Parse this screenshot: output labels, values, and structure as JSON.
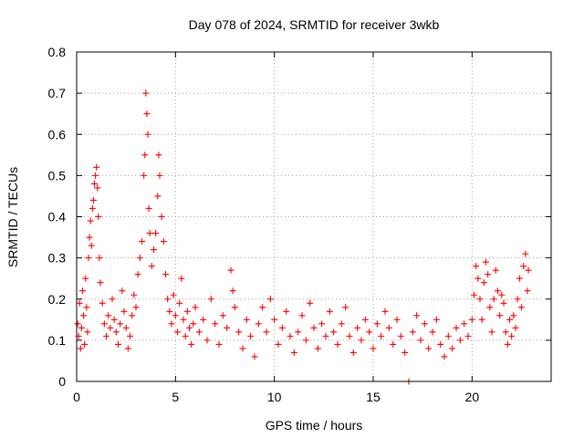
{
  "chart_data": {
    "type": "scatter",
    "title": "Day 078 of 2024, SRMTID for receiver 3wkb",
    "xlabel": "GPS time / hours",
    "ylabel": "SRMTID / TECUs",
    "xlim": [
      0,
      24
    ],
    "ylim": [
      0,
      0.8
    ],
    "x_ticks": [
      0,
      5,
      10,
      15,
      20
    ],
    "x_tick_labels": [
      "0",
      "5",
      "10",
      "15",
      "20"
    ],
    "y_ticks": [
      0,
      0.1,
      0.2,
      0.3,
      0.4,
      0.5,
      0.6,
      0.7,
      0.8
    ],
    "y_tick_labels": [
      "0",
      "0.1",
      "0.2",
      "0.3",
      "0.4",
      "0.5",
      "0.6",
      "0.7",
      "0.8"
    ],
    "grid": true,
    "marker": "plus",
    "color": "#ff0000",
    "series": [
      {
        "name": "SRMTID",
        "points": [
          [
            0.05,
            0.14
          ],
          [
            0.1,
            0.11
          ],
          [
            0.15,
            0.19
          ],
          [
            0.2,
            0.08
          ],
          [
            0.25,
            0.13
          ],
          [
            0.3,
            0.22
          ],
          [
            0.35,
            0.16
          ],
          [
            0.4,
            0.09
          ],
          [
            0.45,
            0.25
          ],
          [
            0.5,
            0.18
          ],
          [
            0.55,
            0.12
          ],
          [
            0.6,
            0.3
          ],
          [
            0.65,
            0.35
          ],
          [
            0.7,
            0.39
          ],
          [
            0.75,
            0.33
          ],
          [
            0.8,
            0.42
          ],
          [
            0.85,
            0.44
          ],
          [
            0.9,
            0.48
          ],
          [
            0.95,
            0.5
          ],
          [
            1.0,
            0.52
          ],
          [
            1.05,
            0.47
          ],
          [
            1.1,
            0.4
          ],
          [
            1.15,
            0.3
          ],
          [
            1.2,
            0.24
          ],
          [
            1.3,
            0.19
          ],
          [
            1.4,
            0.14
          ],
          [
            1.5,
            0.11
          ],
          [
            1.6,
            0.16
          ],
          [
            1.7,
            0.13
          ],
          [
            1.8,
            0.2
          ],
          [
            1.9,
            0.15
          ],
          [
            2.0,
            0.12
          ],
          [
            2.1,
            0.09
          ],
          [
            2.2,
            0.14
          ],
          [
            2.3,
            0.22
          ],
          [
            2.4,
            0.17
          ],
          [
            2.5,
            0.13
          ],
          [
            2.6,
            0.08
          ],
          [
            2.7,
            0.11
          ],
          [
            2.8,
            0.16
          ],
          [
            2.9,
            0.21
          ],
          [
            3.0,
            0.18
          ],
          [
            3.1,
            0.26
          ],
          [
            3.2,
            0.3
          ],
          [
            3.3,
            0.34
          ],
          [
            3.4,
            0.5
          ],
          [
            3.45,
            0.55
          ],
          [
            3.5,
            0.7
          ],
          [
            3.55,
            0.65
          ],
          [
            3.6,
            0.6
          ],
          [
            3.65,
            0.42
          ],
          [
            3.7,
            0.36
          ],
          [
            3.8,
            0.28
          ],
          [
            3.9,
            0.32
          ],
          [
            4.0,
            0.36
          ],
          [
            4.1,
            0.45
          ],
          [
            4.15,
            0.55
          ],
          [
            4.2,
            0.5
          ],
          [
            4.3,
            0.4
          ],
          [
            4.4,
            0.34
          ],
          [
            4.5,
            0.26
          ],
          [
            4.6,
            0.2
          ],
          [
            4.7,
            0.17
          ],
          [
            4.8,
            0.14
          ],
          [
            4.9,
            0.21
          ],
          [
            5.0,
            0.16
          ],
          [
            5.1,
            0.12
          ],
          [
            5.2,
            0.19
          ],
          [
            5.3,
            0.25
          ],
          [
            5.4,
            0.15
          ],
          [
            5.5,
            0.11
          ],
          [
            5.6,
            0.17
          ],
          [
            5.7,
            0.13
          ],
          [
            5.8,
            0.09
          ],
          [
            5.9,
            0.14
          ],
          [
            6.0,
            0.18
          ],
          [
            6.2,
            0.12
          ],
          [
            6.4,
            0.15
          ],
          [
            6.6,
            0.1
          ],
          [
            6.8,
            0.2
          ],
          [
            7.0,
            0.14
          ],
          [
            7.2,
            0.09
          ],
          [
            7.4,
            0.16
          ],
          [
            7.6,
            0.13
          ],
          [
            7.8,
            0.27
          ],
          [
            7.9,
            0.22
          ],
          [
            8.0,
            0.18
          ],
          [
            8.2,
            0.12
          ],
          [
            8.4,
            0.08
          ],
          [
            8.6,
            0.15
          ],
          [
            8.8,
            0.11
          ],
          [
            9.0,
            0.06
          ],
          [
            9.2,
            0.14
          ],
          [
            9.4,
            0.18
          ],
          [
            9.6,
            0.12
          ],
          [
            9.8,
            0.2
          ],
          [
            10.0,
            0.15
          ],
          [
            10.2,
            0.09
          ],
          [
            10.4,
            0.13
          ],
          [
            10.6,
            0.17
          ],
          [
            10.8,
            0.11
          ],
          [
            11.0,
            0.07
          ],
          [
            11.2,
            0.12
          ],
          [
            11.4,
            0.16
          ],
          [
            11.6,
            0.1
          ],
          [
            11.8,
            0.19
          ],
          [
            12.0,
            0.13
          ],
          [
            12.2,
            0.08
          ],
          [
            12.4,
            0.14
          ],
          [
            12.6,
            0.11
          ],
          [
            12.8,
            0.17
          ],
          [
            13.0,
            0.12
          ],
          [
            13.2,
            0.09
          ],
          [
            13.4,
            0.14
          ],
          [
            13.6,
            0.18
          ],
          [
            13.8,
            0.11
          ],
          [
            14.0,
            0.07
          ],
          [
            14.2,
            0.13
          ],
          [
            14.4,
            0.1
          ],
          [
            14.6,
            0.15
          ],
          [
            14.8,
            0.12
          ],
          [
            15.0,
            0.08
          ],
          [
            15.2,
            0.14
          ],
          [
            15.4,
            0.11
          ],
          [
            15.6,
            0.17
          ],
          [
            15.8,
            0.13
          ],
          [
            16.0,
            0.09
          ],
          [
            16.2,
            0.15
          ],
          [
            16.4,
            0.11
          ],
          [
            16.6,
            0.07
          ],
          [
            16.8,
            0.0
          ],
          [
            17.0,
            0.12
          ],
          [
            17.2,
            0.16
          ],
          [
            17.4,
            0.1
          ],
          [
            17.6,
            0.14
          ],
          [
            17.8,
            0.08
          ],
          [
            18.0,
            0.12
          ],
          [
            18.2,
            0.15
          ],
          [
            18.4,
            0.09
          ],
          [
            18.6,
            0.06
          ],
          [
            18.8,
            0.11
          ],
          [
            19.0,
            0.08
          ],
          [
            19.2,
            0.13
          ],
          [
            19.4,
            0.1
          ],
          [
            19.6,
            0.14
          ],
          [
            19.8,
            0.11
          ],
          [
            20.0,
            0.15
          ],
          [
            20.1,
            0.21
          ],
          [
            20.2,
            0.28
          ],
          [
            20.3,
            0.25
          ],
          [
            20.4,
            0.2
          ],
          [
            20.5,
            0.15
          ],
          [
            20.6,
            0.24
          ],
          [
            20.7,
            0.29
          ],
          [
            20.8,
            0.26
          ],
          [
            20.9,
            0.18
          ],
          [
            21.0,
            0.12
          ],
          [
            21.1,
            0.2
          ],
          [
            21.2,
            0.27
          ],
          [
            21.3,
            0.22
          ],
          [
            21.4,
            0.16
          ],
          [
            21.5,
            0.21
          ],
          [
            21.6,
            0.19
          ],
          [
            21.7,
            0.12
          ],
          [
            21.8,
            0.09
          ],
          [
            21.9,
            0.15
          ],
          [
            22.0,
            0.11
          ],
          [
            22.1,
            0.16
          ],
          [
            22.2,
            0.13
          ],
          [
            22.3,
            0.2
          ],
          [
            22.4,
            0.25
          ],
          [
            22.5,
            0.18
          ],
          [
            22.6,
            0.28
          ],
          [
            22.7,
            0.31
          ],
          [
            22.8,
            0.22
          ],
          [
            22.85,
            0.27
          ]
        ]
      }
    ]
  }
}
